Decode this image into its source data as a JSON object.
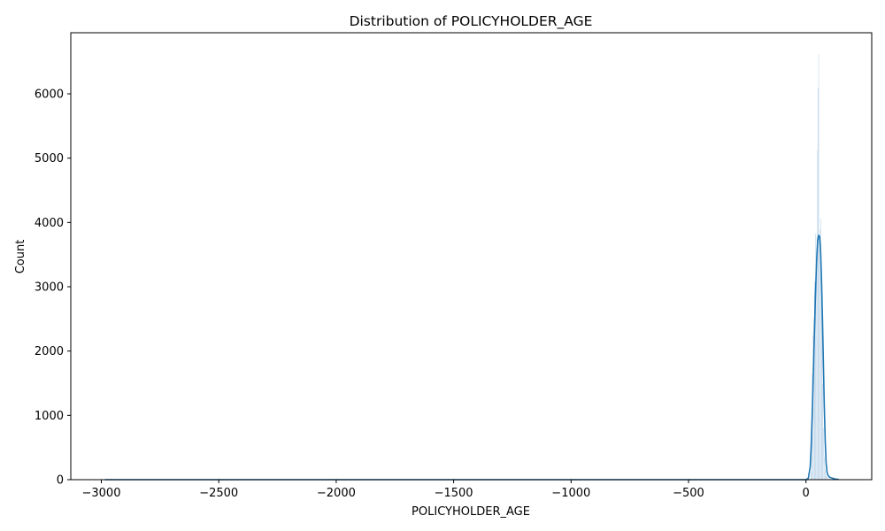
{
  "chart_data": {
    "type": "histogram",
    "title": "Distribution of POLICYHOLDER_AGE",
    "xlabel": "POLICYHOLDER_AGE",
    "ylabel": "Count",
    "xlim": [
      -3130,
      280
    ],
    "ylim": [
      0,
      6950
    ],
    "xticks": [
      -3000,
      -2500,
      -2000,
      -1500,
      -1000,
      -500,
      0
    ],
    "yticks": [
      0,
      1000,
      2000,
      3000,
      4000,
      5000,
      6000
    ],
    "grid": false,
    "colors": {
      "bar_fill": "#a9c8e3",
      "bar_edge": "#ffffff",
      "kde_line": "#1f77b4"
    },
    "bars": [
      {
        "x": 21,
        "count": 120
      },
      {
        "x": 24,
        "count": 900
      },
      {
        "x": 27,
        "count": 1650
      },
      {
        "x": 30,
        "count": 2250
      },
      {
        "x": 33,
        "count": 2500
      },
      {
        "x": 36,
        "count": 3080
      },
      {
        "x": 39,
        "count": 2900
      },
      {
        "x": 42,
        "count": 3830
      },
      {
        "x": 45,
        "count": 3420
      },
      {
        "x": 48,
        "count": 5130
      },
      {
        "x": 51,
        "count": 6100
      },
      {
        "x": 54,
        "count": 6620
      },
      {
        "x": 57,
        "count": 3800
      },
      {
        "x": 60,
        "count": 3900
      },
      {
        "x": 63,
        "count": 4060
      },
      {
        "x": 66,
        "count": 3200
      },
      {
        "x": 69,
        "count": 2700
      },
      {
        "x": 72,
        "count": 1500
      },
      {
        "x": 75,
        "count": 800
      },
      {
        "x": 78,
        "count": 350
      },
      {
        "x": 81,
        "count": 150
      },
      {
        "x": 84,
        "count": 90
      },
      {
        "x": 87,
        "count": 70
      },
      {
        "x": 90,
        "count": 50
      },
      {
        "x": 95,
        "count": 30
      },
      {
        "x": 100,
        "count": 20
      },
      {
        "x": 110,
        "count": 15
      },
      {
        "x": 120,
        "count": 10
      }
    ],
    "kde": {
      "x": [
        -2985,
        -2500,
        -2000,
        -1500,
        -1000,
        -500,
        -100,
        0,
        10,
        18,
        22,
        26,
        30,
        34,
        38,
        42,
        46,
        50,
        54,
        58,
        62,
        66,
        70,
        74,
        78,
        82,
        86,
        90,
        95,
        100,
        110,
        120,
        130,
        140
      ],
      "y": [
        0,
        0,
        0,
        0,
        0,
        0,
        0,
        0,
        20,
        200,
        500,
        950,
        1450,
        2000,
        2550,
        3050,
        3450,
        3720,
        3800,
        3780,
        3600,
        3150,
        2550,
        1850,
        1150,
        600,
        250,
        110,
        60,
        40,
        25,
        15,
        8,
        3
      ]
    }
  }
}
